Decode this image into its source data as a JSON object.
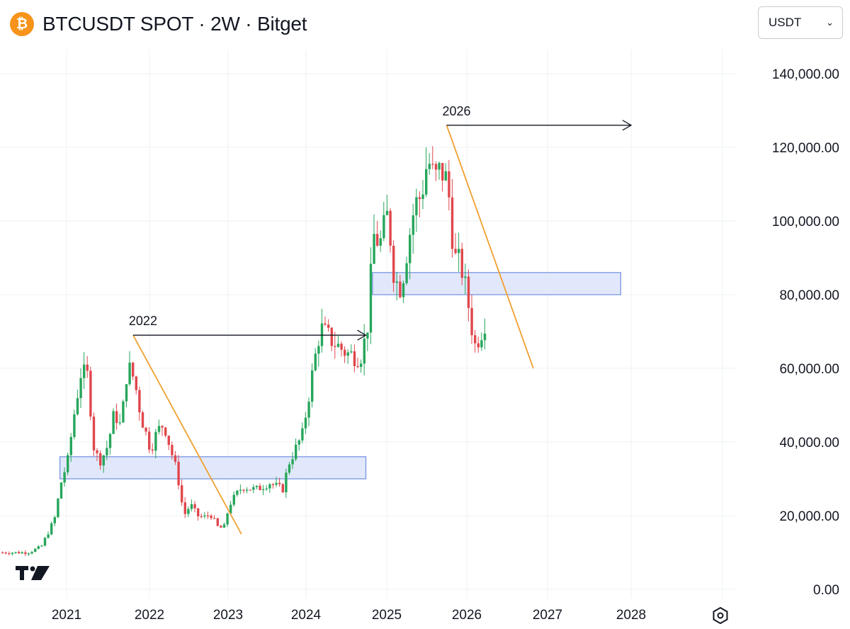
{
  "header": {
    "title": "BTCUSDT SPOT · 2W · Bitget",
    "coin_icon": "bitcoin-icon",
    "coin_symbol": "₿"
  },
  "currency_select": {
    "selected": "USDT",
    "icon": "chevron-down-icon"
  },
  "colors": {
    "up": "#26a65b",
    "down": "#e0474c",
    "zone_fill": "#dfe6fb",
    "zone_stroke": "#6f8fe0",
    "trendline": "#f0a030",
    "arrow": "#131722",
    "grid": "#eef0f3",
    "text": "#131722"
  },
  "chart_data": {
    "type": "candlestick",
    "title": "BTCUSDT SPOT · 2W · Bitget",
    "interval": "2W",
    "x_type": "time",
    "x_tick_labels": [
      "2021",
      "2022",
      "2023",
      "2024",
      "2025",
      "2026",
      "2027",
      "2028"
    ],
    "y_tick_labels": [
      "140,000.00",
      "120,000.00",
      "100,000.00",
      "80,000.00",
      "60,000.00",
      "40,000.00",
      "20,000.00",
      "0.00"
    ],
    "ylim": [
      0,
      150000
    ],
    "grid": true,
    "closes": [
      {
        "x": "2020-07",
        "y": 10000
      },
      {
        "x": "2020-09",
        "y": 11500
      },
      {
        "x": "2020-11",
        "y": 19000
      },
      {
        "x": "2020-12",
        "y": 29000
      },
      {
        "x": "2021-01",
        "y": 35000
      },
      {
        "x": "2021-02",
        "y": 48000
      },
      {
        "x": "2021-03",
        "y": 59000
      },
      {
        "x": "2021-04",
        "y": 58000
      },
      {
        "x": "2021-05",
        "y": 37000
      },
      {
        "x": "2021-06",
        "y": 35000
      },
      {
        "x": "2021-07",
        "y": 39000
      },
      {
        "x": "2021-08",
        "y": 48000
      },
      {
        "x": "2021-09",
        "y": 44000
      },
      {
        "x": "2021-10",
        "y": 61000
      },
      {
        "x": "2021-11",
        "y": 57000
      },
      {
        "x": "2021-12",
        "y": 47000
      },
      {
        "x": "2022-01",
        "y": 38000
      },
      {
        "x": "2022-02",
        "y": 43000
      },
      {
        "x": "2022-03",
        "y": 45000
      },
      {
        "x": "2022-04",
        "y": 38000
      },
      {
        "x": "2022-05",
        "y": 31500
      },
      {
        "x": "2022-06",
        "y": 20000
      },
      {
        "x": "2022-07",
        "y": 23000
      },
      {
        "x": "2022-08",
        "y": 20000
      },
      {
        "x": "2022-09",
        "y": 19500
      },
      {
        "x": "2022-10",
        "y": 20500
      },
      {
        "x": "2022-11",
        "y": 17000
      },
      {
        "x": "2022-12",
        "y": 16500
      },
      {
        "x": "2023-01",
        "y": 23000
      },
      {
        "x": "2023-03",
        "y": 28000
      },
      {
        "x": "2023-05",
        "y": 27000
      },
      {
        "x": "2023-07",
        "y": 29000
      },
      {
        "x": "2023-09",
        "y": 27000
      },
      {
        "x": "2023-10",
        "y": 34500
      },
      {
        "x": "2023-12",
        "y": 42000
      },
      {
        "x": "2024-02",
        "y": 61000
      },
      {
        "x": "2024-03",
        "y": 71000
      },
      {
        "x": "2024-05",
        "y": 67000
      },
      {
        "x": "2024-07",
        "y": 64000
      },
      {
        "x": "2024-09",
        "y": 63000
      },
      {
        "x": "2024-10",
        "y": 70000
      },
      {
        "x": "2024-11",
        "y": 96000
      },
      {
        "x": "2024-12",
        "y": 94000
      },
      {
        "x": "2025-01",
        "y": 102000
      },
      {
        "x": "2025-02",
        "y": 84000
      },
      {
        "x": "2025-03",
        "y": 82000
      },
      {
        "x": "2025-04",
        "y": 94000
      },
      {
        "x": "2025-05",
        "y": 104000
      },
      {
        "x": "2025-06",
        "y": 107000
      },
      {
        "x": "2025-07",
        "y": 117000
      },
      {
        "x": "2025-08",
        "y": 111000
      },
      {
        "x": "2025-09",
        "y": 114000
      },
      {
        "x": "2025-10",
        "y": 110000
      },
      {
        "x": "2025-11",
        "y": 90000
      },
      {
        "x": "2025-12",
        "y": 88000
      },
      {
        "x": "2026-01",
        "y": 78000
      },
      {
        "x": "2026-02",
        "y": 66000
      },
      {
        "x": "2026-03",
        "y": 70000
      },
      {
        "x": "2026-04",
        "y": 75000
      }
    ],
    "zones": [
      {
        "from": "2020-12",
        "to": "2024-10",
        "low": 30000,
        "high": 36000
      },
      {
        "from": "2024-11",
        "to": "2027-12",
        "low": 80000,
        "high": 86000
      }
    ],
    "annotations": [
      {
        "text": "2022",
        "kind": "arrow",
        "from_x": "2021-11",
        "to_x": "2024-10",
        "y": 69000
      },
      {
        "text": "2026",
        "kind": "arrow",
        "from_x": "2025-10",
        "to_x": "2028-01",
        "y": 126000
      }
    ],
    "trendlines": [
      {
        "from": {
          "x": "2021-11",
          "y": 69000
        },
        "to": {
          "x": "2023-03",
          "y": 15000
        }
      },
      {
        "from": {
          "x": "2025-10",
          "y": 126000
        },
        "to": {
          "x": "2026-11",
          "y": 60000
        }
      }
    ]
  },
  "footer": {
    "logo": "tradingview-logo",
    "settings_icon": "settings-hexagon-icon"
  }
}
